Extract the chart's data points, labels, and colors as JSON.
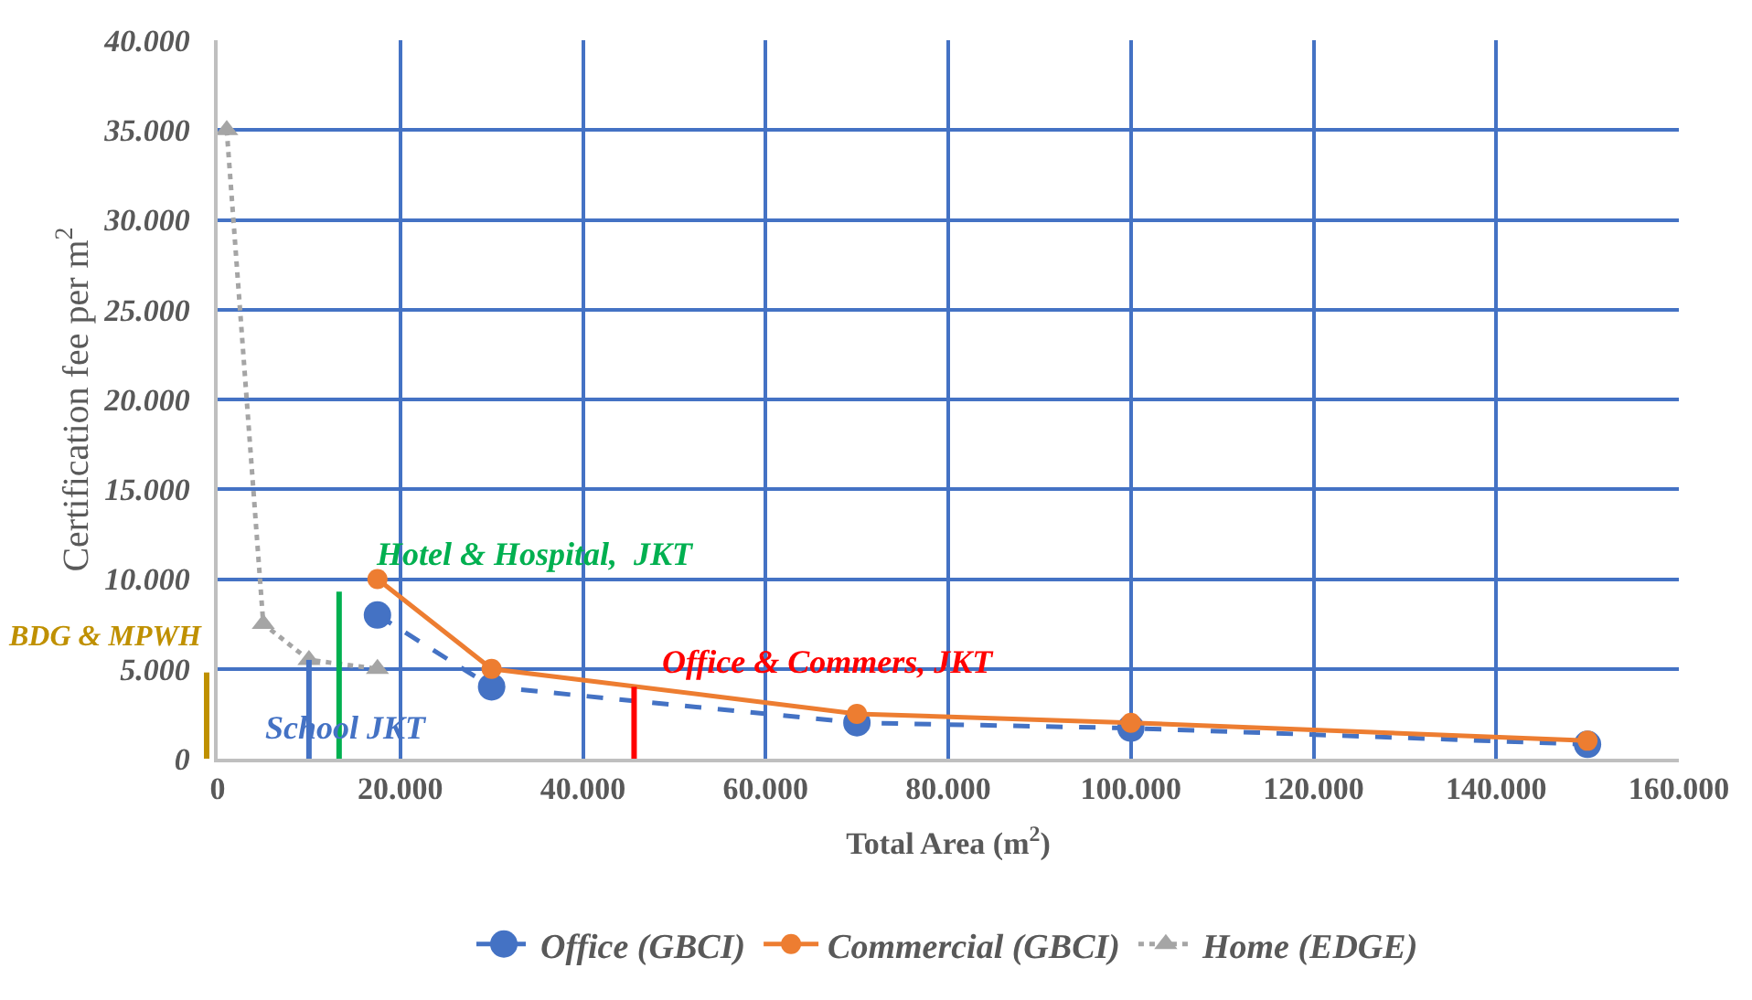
{
  "chart_data": {
    "type": "line",
    "xlabel": "Total Area (m$^{2}$)",
    "ylabel": "Certification fee per m$^{2}$",
    "xlim": [
      0,
      160000
    ],
    "ylim": [
      0,
      40000
    ],
    "xticks": [
      {
        "value": 0,
        "label": "0"
      },
      {
        "value": 20000,
        "label": "20.000"
      },
      {
        "value": 40000,
        "label": "40.000"
      },
      {
        "value": 60000,
        "label": "60.000"
      },
      {
        "value": 80000,
        "label": "80.000"
      },
      {
        "value": 100000,
        "label": "100.000"
      },
      {
        "value": 120000,
        "label": "120.000"
      },
      {
        "value": 140000,
        "label": "140.000"
      },
      {
        "value": 160000,
        "label": "160.000"
      }
    ],
    "yticks": [
      {
        "value": 0,
        "label": "0"
      },
      {
        "value": 5000,
        "label": "5.000"
      },
      {
        "value": 10000,
        "label": "10.000"
      },
      {
        "value": 15000,
        "label": "15.000"
      },
      {
        "value": 20000,
        "label": "20.000"
      },
      {
        "value": 25000,
        "label": "25.000"
      },
      {
        "value": 30000,
        "label": "30.000"
      },
      {
        "value": 35000,
        "label": "35.000"
      },
      {
        "value": 40000,
        "label": "40.000"
      }
    ],
    "grid": true,
    "legend": "bottom",
    "series": [
      {
        "name": "Office (GBCI)",
        "color": "#4472c4",
        "line_style": "dashed",
        "marker": "circle",
        "x": [
          17500,
          30000,
          70000,
          100000,
          150000
        ],
        "values": [
          8000,
          4000,
          2000,
          1700,
          800
        ]
      },
      {
        "name": "Commercial (GBCI)",
        "color": "#ed7d31",
        "line_style": "solid",
        "marker": "circle",
        "x": [
          17500,
          30000,
          70000,
          100000,
          150000
        ],
        "values": [
          10000,
          5000,
          2500,
          2000,
          1000
        ]
      },
      {
        "name": "Home (EDGE)",
        "color": "#a5a5a5",
        "line_style": "dotted",
        "marker": "triangle",
        "x": [
          1000,
          5000,
          10000,
          17500
        ],
        "values": [
          35000,
          7500,
          5500,
          5000
        ]
      },
      {
        "color": "#00b050",
        "line_style": "solid",
        "marker": "none",
        "x": [
          13300,
          13300
        ],
        "values": [
          0,
          9300
        ]
      },
      {
        "color": "#ff0000",
        "line_style": "solid",
        "marker": "none",
        "x": [
          45600,
          45600
        ],
        "values": [
          0,
          4000
        ]
      },
      {
        "color": "#4472c4",
        "line_style": "solid",
        "marker": "none",
        "x": [
          10000,
          10000
        ],
        "values": [
          0,
          5500
        ]
      }
    ],
    "annotations": [
      "Hotel & Hospital,  JKT",
      "Office & Commers, JKT",
      "School JKT",
      "BDG & MPWH"
    ]
  }
}
